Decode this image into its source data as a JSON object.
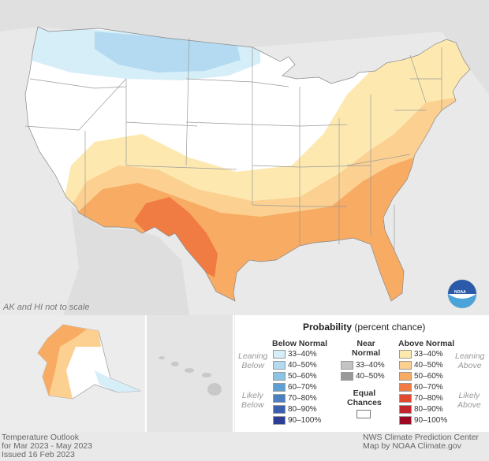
{
  "map": {
    "scale_note": "AK and HI not to scale",
    "logo_text": "NOAA"
  },
  "legend": {
    "title_bold": "Probability",
    "title_rest": " (percent chance)",
    "below_header": "Below Normal",
    "near_header_1": "Near",
    "near_header_2": "Normal",
    "above_header": "Above Normal",
    "equal_1": "Equal",
    "equal_2": "Chances",
    "leaning_below_1": "Leaning",
    "leaning_below_2": "Below",
    "likely_below_1": "Likely",
    "likely_below_2": "Below",
    "leaning_above_1": "Leaning",
    "leaning_above_2": "Above",
    "likely_above_1": "Likely",
    "likely_above_2": "Above",
    "below": [
      {
        "label": "33–40%",
        "color": "#d6eef8"
      },
      {
        "label": "40–50%",
        "color": "#b3daf0"
      },
      {
        "label": "50–60%",
        "color": "#8cc4e6"
      },
      {
        "label": "60–70%",
        "color": "#5f9fd3"
      },
      {
        "label": "70–80%",
        "color": "#4a7fc0"
      },
      {
        "label": "80–90%",
        "color": "#3a5fae"
      },
      {
        "label": "90–100%",
        "color": "#2b3d94"
      }
    ],
    "near": [
      {
        "label": "33–40%",
        "color": "#c4c4c4"
      },
      {
        "label": "40–50%",
        "color": "#999999"
      }
    ],
    "above": [
      {
        "label": "33–40%",
        "color": "#fde9b0"
      },
      {
        "label": "40–50%",
        "color": "#fbd091"
      },
      {
        "label": "50–60%",
        "color": "#f7ab63"
      },
      {
        "label": "60–70%",
        "color": "#f07c44"
      },
      {
        "label": "70–80%",
        "color": "#e2492f"
      },
      {
        "label": "80–90%",
        "color": "#c3262a"
      },
      {
        "label": "90–100%",
        "color": "#9b0a22"
      }
    ]
  },
  "footer": {
    "left_1": "Temperature Outlook",
    "left_2": "for Mar 2023 - May 2023",
    "left_3": "Issued 16 Feb 2023",
    "right_1": "NWS Climate Prediction Center",
    "right_2": "Map by NOAA Climate.gov"
  }
}
